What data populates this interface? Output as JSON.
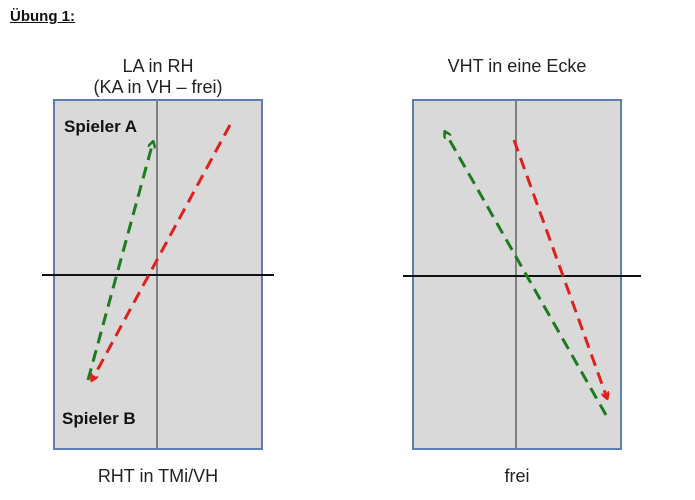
{
  "title": "Übung 1:",
  "diagrams": [
    {
      "top_caption_line1": "LA in RH",
      "top_caption_line2": "(KA in VH – frei)",
      "bottom_caption": "RHT in TMi/VH",
      "player_top": "Spieler A",
      "player_bottom": "Spieler B"
    },
    {
      "top_caption_line1": "VHT in eine Ecke",
      "bottom_caption": "frei"
    }
  ],
  "colors": {
    "table": "#d9d9d9",
    "border": "#5b7fb0",
    "green": "#1e7a1e",
    "red": "#e0201e"
  }
}
